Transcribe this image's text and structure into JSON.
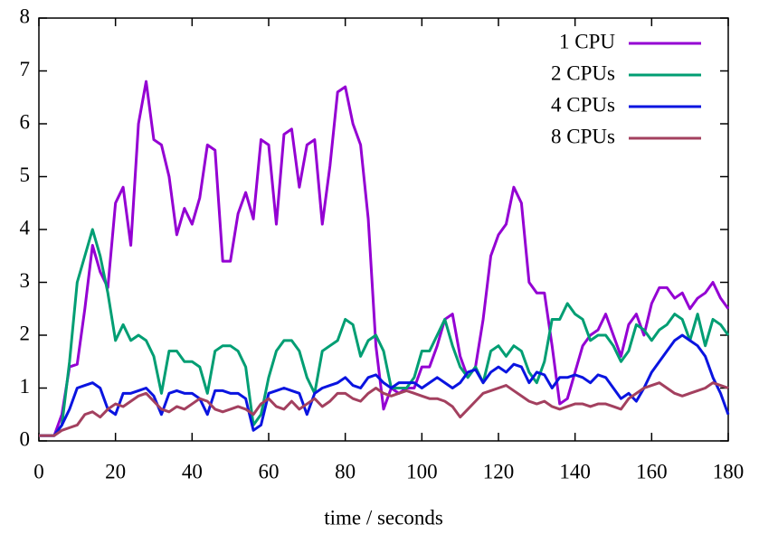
{
  "chart_data": {
    "type": "line",
    "xlabel": "time / seconds",
    "xlim": [
      0,
      180
    ],
    "xticks": [
      0,
      20,
      40,
      60,
      80,
      100,
      120,
      140,
      160,
      180
    ],
    "ylim": [
      0,
      8
    ],
    "yticks": [
      0,
      1,
      2,
      3,
      4,
      5,
      6,
      7,
      8
    ],
    "grid": false,
    "legend": "top-right",
    "x": [
      0,
      2,
      4,
      6,
      8,
      10,
      12,
      14,
      16,
      18,
      20,
      22,
      24,
      26,
      28,
      30,
      32,
      34,
      36,
      38,
      40,
      42,
      44,
      46,
      48,
      50,
      52,
      54,
      56,
      58,
      60,
      62,
      64,
      66,
      68,
      70,
      72,
      74,
      76,
      78,
      80,
      82,
      84,
      86,
      88,
      90,
      92,
      94,
      96,
      98,
      100,
      102,
      104,
      106,
      108,
      110,
      112,
      114,
      116,
      118,
      120,
      122,
      124,
      126,
      128,
      130,
      132,
      134,
      136,
      138,
      140,
      142,
      144,
      146,
      148,
      150,
      152,
      154,
      156,
      158,
      160,
      162,
      164,
      166,
      168,
      170,
      172,
      174,
      176,
      178,
      180
    ],
    "series": [
      {
        "name": "1 CPU",
        "color": "#9400d3",
        "values": [
          0.1,
          0.1,
          0.1,
          0.5,
          1.4,
          1.45,
          2.5,
          3.7,
          3.2,
          2.9,
          4.5,
          4.8,
          3.7,
          6.0,
          6.8,
          5.7,
          5.6,
          5.0,
          3.9,
          4.4,
          4.1,
          4.6,
          5.6,
          5.5,
          3.4,
          3.4,
          4.3,
          4.7,
          4.2,
          5.7,
          5.6,
          4.1,
          5.8,
          5.9,
          4.8,
          5.6,
          5.7,
          4.1,
          5.2,
          6.6,
          6.7,
          6.0,
          5.6,
          4.2,
          1.8,
          0.6,
          1.0,
          0.9,
          1.0,
          1.0,
          1.4,
          1.4,
          1.8,
          2.3,
          2.4,
          1.6,
          1.2,
          1.4,
          2.3,
          3.5,
          3.9,
          4.1,
          4.8,
          4.5,
          3.0,
          2.8,
          2.8,
          1.8,
          0.7,
          0.8,
          1.3,
          1.8,
          2.0,
          2.1,
          2.4,
          2.0,
          1.6,
          2.2,
          2.4,
          2.0,
          2.6,
          2.9,
          2.9,
          2.7,
          2.8,
          2.5,
          2.7,
          2.8,
          3.0,
          2.7,
          2.5
        ]
      },
      {
        "name": "2 CPUs",
        "color": "#009e73",
        "values": [
          0.1,
          0.1,
          0.1,
          0.3,
          1.5,
          3.0,
          3.5,
          4.0,
          3.5,
          2.8,
          1.9,
          2.2,
          1.9,
          2.0,
          1.9,
          1.6,
          0.9,
          1.7,
          1.7,
          1.5,
          1.5,
          1.4,
          0.9,
          1.7,
          1.8,
          1.8,
          1.7,
          1.4,
          0.3,
          0.5,
          1.2,
          1.7,
          1.9,
          1.9,
          1.7,
          1.2,
          0.9,
          1.7,
          1.8,
          1.9,
          2.3,
          2.2,
          1.6,
          1.9,
          2.0,
          1.7,
          1.0,
          1.0,
          1.0,
          1.2,
          1.7,
          1.7,
          2.0,
          2.3,
          1.8,
          1.4,
          1.2,
          1.4,
          1.1,
          1.7,
          1.8,
          1.6,
          1.8,
          1.7,
          1.3,
          1.1,
          1.5,
          2.3,
          2.3,
          2.6,
          2.4,
          2.3,
          1.9,
          2.0,
          2.0,
          1.8,
          1.5,
          1.7,
          2.2,
          2.1,
          1.9,
          2.1,
          2.2,
          2.4,
          2.3,
          1.9,
          2.4,
          1.8,
          2.3,
          2.2,
          2.0
        ]
      },
      {
        "name": "4 CPUs",
        "color": "#0a14e0",
        "values": [
          0.1,
          0.1,
          0.1,
          0.3,
          0.6,
          1.0,
          1.05,
          1.1,
          1.0,
          0.6,
          0.5,
          0.9,
          0.9,
          0.95,
          1.0,
          0.85,
          0.5,
          0.9,
          0.95,
          0.9,
          0.9,
          0.8,
          0.5,
          0.95,
          0.95,
          0.9,
          0.9,
          0.8,
          0.2,
          0.3,
          0.9,
          0.95,
          1.0,
          0.95,
          0.9,
          0.5,
          0.9,
          1.0,
          1.05,
          1.1,
          1.2,
          1.05,
          1.0,
          1.2,
          1.25,
          1.1,
          1.0,
          1.1,
          1.1,
          1.1,
          1.0,
          1.1,
          1.2,
          1.1,
          1.0,
          1.1,
          1.3,
          1.35,
          1.1,
          1.3,
          1.4,
          1.3,
          1.45,
          1.4,
          1.1,
          1.3,
          1.25,
          1.0,
          1.2,
          1.2,
          1.25,
          1.2,
          1.1,
          1.25,
          1.2,
          1.0,
          0.8,
          0.9,
          0.75,
          1.0,
          1.3,
          1.5,
          1.7,
          1.9,
          2.0,
          1.9,
          1.8,
          1.6,
          1.2,
          0.9,
          0.5
        ]
      },
      {
        "name": "8 CPUs",
        "color": "#a3405f",
        "values": [
          0.1,
          0.1,
          0.1,
          0.2,
          0.25,
          0.3,
          0.5,
          0.55,
          0.45,
          0.6,
          0.7,
          0.65,
          0.75,
          0.85,
          0.9,
          0.75,
          0.6,
          0.55,
          0.65,
          0.6,
          0.7,
          0.8,
          0.75,
          0.6,
          0.55,
          0.6,
          0.65,
          0.6,
          0.5,
          0.7,
          0.8,
          0.65,
          0.6,
          0.75,
          0.6,
          0.7,
          0.8,
          0.65,
          0.75,
          0.9,
          0.9,
          0.8,
          0.75,
          0.9,
          1.0,
          0.9,
          0.85,
          0.9,
          0.95,
          0.9,
          0.85,
          0.8,
          0.8,
          0.75,
          0.65,
          0.45,
          0.6,
          0.75,
          0.9,
          0.95,
          1.0,
          1.05,
          0.95,
          0.85,
          0.75,
          0.7,
          0.75,
          0.65,
          0.6,
          0.65,
          0.7,
          0.7,
          0.65,
          0.7,
          0.7,
          0.65,
          0.6,
          0.8,
          0.9,
          1.0,
          1.05,
          1.1,
          1.0,
          0.9,
          0.85,
          0.9,
          0.95,
          1.0,
          1.1,
          1.05,
          1.0
        ]
      }
    ]
  }
}
